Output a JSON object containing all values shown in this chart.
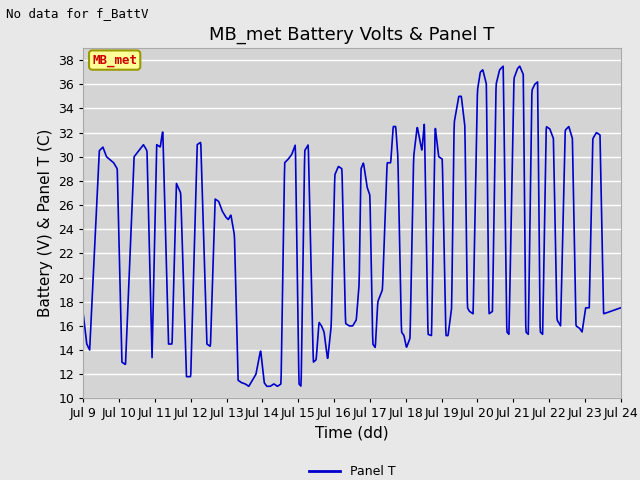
{
  "title": "MB_met Battery Volts & Panel T",
  "top_left_text": "No data for f_BattV",
  "xlabel": "Time (dd)",
  "ylabel": "Battery (V) & Panel T (C)",
  "ylim": [
    10,
    39
  ],
  "yticks": [
    10,
    12,
    14,
    16,
    18,
    20,
    22,
    24,
    26,
    28,
    30,
    32,
    34,
    36,
    38
  ],
  "x_start": 9.0,
  "x_end": 24.0,
  "xtick_labels": [
    "Jul 9",
    "Jul 10",
    "Jul 11",
    "Jul 12",
    "Jul 13",
    "Jul 14",
    "Jul 15",
    "Jul 16",
    "Jul 17",
    "Jul 18",
    "Jul 19",
    "Jul 20",
    "Jul 21",
    "Jul 22",
    "Jul 23",
    "Jul 24"
  ],
  "xtick_positions": [
    9,
    10,
    11,
    12,
    13,
    14,
    15,
    16,
    17,
    18,
    19,
    20,
    21,
    22,
    23,
    24
  ],
  "line_color": "#0000cc",
  "line_label": "Panel T",
  "legend_box_color": "#ffff99",
  "legend_box_border": "#999900",
  "legend_box_text": "MB_met",
  "legend_box_text_color": "#cc0000",
  "bg_color": "#e8e8e8",
  "plot_bg_color": "#d4d4d4",
  "grid_color": "#ffffff",
  "title_fontsize": 13,
  "axis_fontsize": 11,
  "tick_fontsize": 9,
  "control_points": [
    [
      9.0,
      17.0
    ],
    [
      9.1,
      14.5
    ],
    [
      9.18,
      14.0
    ],
    [
      9.45,
      30.5
    ],
    [
      9.55,
      30.8
    ],
    [
      9.65,
      30.0
    ],
    [
      9.85,
      29.5
    ],
    [
      9.95,
      29.0
    ],
    [
      10.08,
      13.0
    ],
    [
      10.18,
      12.8
    ],
    [
      10.42,
      30.0
    ],
    [
      10.55,
      30.5
    ],
    [
      10.68,
      31.0
    ],
    [
      10.78,
      30.5
    ],
    [
      10.92,
      13.2
    ],
    [
      11.05,
      31.0
    ],
    [
      11.15,
      30.8
    ],
    [
      11.22,
      32.2
    ],
    [
      11.38,
      14.5
    ],
    [
      11.48,
      14.5
    ],
    [
      11.6,
      27.8
    ],
    [
      11.72,
      27.0
    ],
    [
      11.88,
      11.8
    ],
    [
      11.95,
      11.8
    ],
    [
      12.0,
      11.8
    ],
    [
      12.18,
      31.0
    ],
    [
      12.28,
      31.2
    ],
    [
      12.45,
      14.5
    ],
    [
      12.55,
      14.3
    ],
    [
      12.68,
      26.5
    ],
    [
      12.78,
      26.3
    ],
    [
      12.88,
      25.5
    ],
    [
      12.98,
      25.0
    ],
    [
      13.05,
      24.8
    ],
    [
      13.12,
      25.2
    ],
    [
      13.22,
      23.5
    ],
    [
      13.32,
      11.5
    ],
    [
      13.42,
      11.3
    ],
    [
      13.52,
      11.2
    ],
    [
      13.62,
      11.0
    ],
    [
      13.72,
      11.5
    ],
    [
      13.82,
      12.0
    ],
    [
      13.95,
      14.0
    ],
    [
      14.05,
      11.3
    ],
    [
      14.12,
      11.0
    ],
    [
      14.22,
      11.0
    ],
    [
      14.32,
      11.2
    ],
    [
      14.42,
      11.0
    ],
    [
      14.52,
      11.2
    ],
    [
      14.62,
      29.5
    ],
    [
      14.72,
      29.8
    ],
    [
      14.82,
      30.2
    ],
    [
      14.92,
      31.0
    ],
    [
      15.02,
      11.2
    ],
    [
      15.08,
      11.0
    ],
    [
      15.18,
      30.5
    ],
    [
      15.28,
      31.0
    ],
    [
      15.42,
      13.0
    ],
    [
      15.5,
      13.2
    ],
    [
      15.58,
      16.3
    ],
    [
      15.65,
      16.0
    ],
    [
      15.72,
      15.5
    ],
    [
      15.82,
      13.2
    ],
    [
      15.92,
      16.0
    ],
    [
      16.02,
      28.5
    ],
    [
      16.12,
      29.2
    ],
    [
      16.22,
      29.0
    ],
    [
      16.32,
      16.2
    ],
    [
      16.42,
      16.0
    ],
    [
      16.52,
      16.0
    ],
    [
      16.62,
      16.5
    ],
    [
      16.7,
      19.5
    ],
    [
      16.75,
      29.0
    ],
    [
      16.82,
      29.5
    ],
    [
      16.92,
      27.5
    ],
    [
      17.0,
      26.8
    ],
    [
      17.08,
      14.5
    ],
    [
      17.15,
      14.2
    ],
    [
      17.22,
      18.0
    ],
    [
      17.35,
      19.0
    ],
    [
      17.48,
      29.5
    ],
    [
      17.58,
      29.5
    ],
    [
      17.65,
      32.5
    ],
    [
      17.72,
      32.5
    ],
    [
      17.78,
      30.0
    ],
    [
      17.88,
      15.5
    ],
    [
      17.95,
      15.2
    ],
    [
      18.02,
      14.2
    ],
    [
      18.12,
      15.0
    ],
    [
      18.22,
      30.0
    ],
    [
      18.32,
      32.5
    ],
    [
      18.45,
      30.5
    ],
    [
      18.52,
      32.8
    ],
    [
      18.62,
      15.3
    ],
    [
      18.72,
      15.2
    ],
    [
      18.82,
      32.5
    ],
    [
      18.92,
      30.0
    ],
    [
      19.02,
      29.8
    ],
    [
      19.12,
      15.2
    ],
    [
      19.18,
      15.2
    ],
    [
      19.28,
      17.5
    ],
    [
      19.35,
      32.8
    ],
    [
      19.48,
      35.0
    ],
    [
      19.55,
      35.0
    ],
    [
      19.65,
      32.5
    ],
    [
      19.72,
      17.5
    ],
    [
      19.78,
      17.2
    ],
    [
      19.88,
      17.0
    ],
    [
      20.0,
      35.5
    ],
    [
      20.08,
      37.0
    ],
    [
      20.15,
      37.2
    ],
    [
      20.25,
      36.0
    ],
    [
      20.32,
      17.0
    ],
    [
      20.42,
      17.2
    ],
    [
      20.52,
      36.0
    ],
    [
      20.62,
      37.2
    ],
    [
      20.72,
      37.5
    ],
    [
      20.82,
      15.5
    ],
    [
      20.88,
      15.3
    ],
    [
      21.02,
      36.5
    ],
    [
      21.12,
      37.3
    ],
    [
      21.18,
      37.5
    ],
    [
      21.28,
      36.8
    ],
    [
      21.35,
      15.5
    ],
    [
      21.42,
      15.3
    ],
    [
      21.52,
      35.5
    ],
    [
      21.6,
      36.0
    ],
    [
      21.68,
      36.2
    ],
    [
      21.75,
      15.5
    ],
    [
      21.82,
      15.3
    ],
    [
      21.92,
      32.5
    ],
    [
      22.02,
      32.3
    ],
    [
      22.12,
      31.5
    ],
    [
      22.22,
      16.5
    ],
    [
      22.32,
      16.0
    ],
    [
      22.45,
      32.2
    ],
    [
      22.55,
      32.5
    ],
    [
      22.65,
      31.5
    ],
    [
      22.75,
      16.0
    ],
    [
      22.85,
      15.8
    ],
    [
      22.92,
      15.5
    ],
    [
      23.02,
      17.5
    ],
    [
      23.12,
      17.5
    ],
    [
      23.22,
      31.5
    ],
    [
      23.32,
      32.0
    ],
    [
      23.42,
      31.8
    ],
    [
      23.52,
      17.0
    ],
    [
      24.0,
      17.5
    ]
  ]
}
